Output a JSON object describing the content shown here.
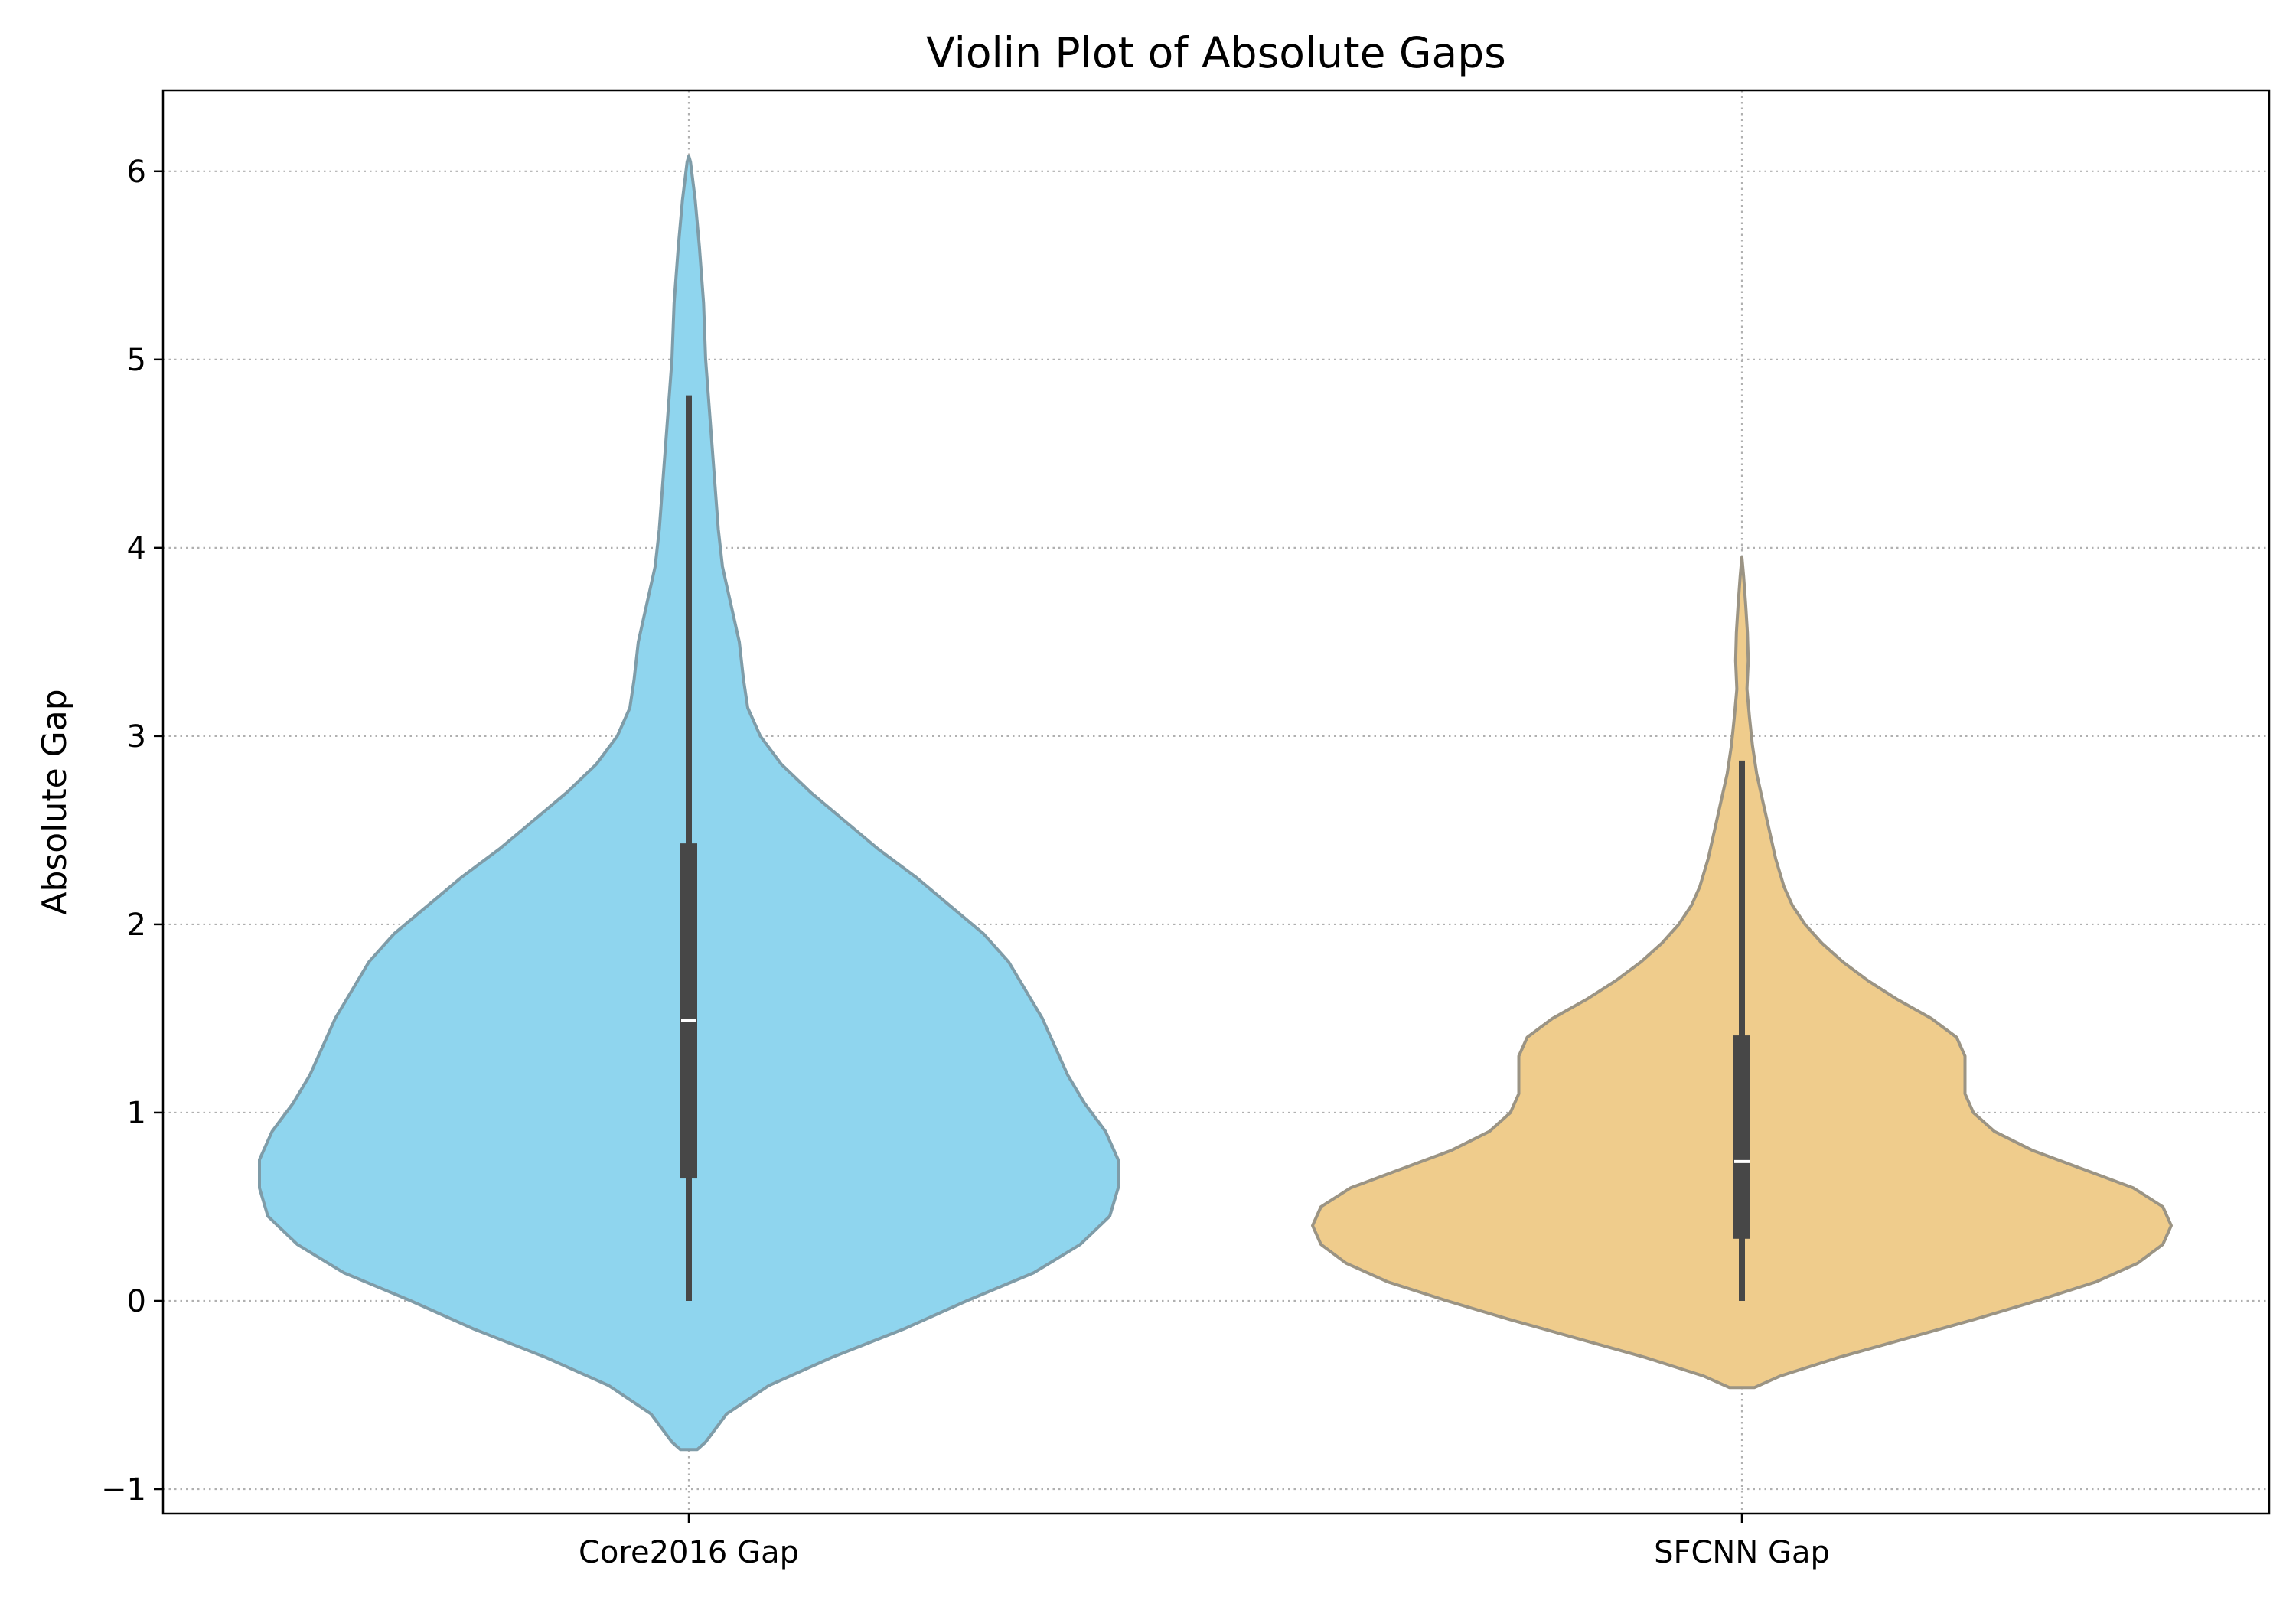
{
  "chart_data": {
    "type": "violin",
    "title": "Violin Plot of Absolute Gaps",
    "xlabel": "",
    "ylabel": "Absolute Gap",
    "ylim": [
      -1.13,
      6.43
    ],
    "yticks": [
      -1,
      0,
      1,
      2,
      3,
      4,
      5,
      6
    ],
    "ytick_labels": [
      "−1",
      "0",
      "1",
      "2",
      "3",
      "4",
      "5",
      "6"
    ],
    "grid": true,
    "categories": [
      "Core2016 Gap",
      "SFCNN Gap"
    ],
    "series": [
      {
        "category": "Core2016 Gap",
        "color": "#8fd5ee",
        "edge_color": "#7f9ca8",
        "whisker_low": 0.0,
        "q1": 0.65,
        "median": 1.49,
        "q3": 2.43,
        "whisker_high": 4.81,
        "density": [
          [
            -0.79,
            0.02
          ],
          [
            -0.75,
            0.04
          ],
          [
            -0.6,
            0.09
          ],
          [
            -0.45,
            0.19
          ],
          [
            -0.3,
            0.34
          ],
          [
            -0.15,
            0.51
          ],
          [
            0.0,
            0.66
          ],
          [
            0.15,
            0.82
          ],
          [
            0.3,
            0.93
          ],
          [
            0.45,
            1.0
          ],
          [
            0.6,
            1.02
          ],
          [
            0.75,
            1.02
          ],
          [
            0.9,
            0.99
          ],
          [
            1.05,
            0.94
          ],
          [
            1.2,
            0.9
          ],
          [
            1.35,
            0.87
          ],
          [
            1.5,
            0.84
          ],
          [
            1.65,
            0.8
          ],
          [
            1.8,
            0.76
          ],
          [
            1.95,
            0.7
          ],
          [
            2.1,
            0.62
          ],
          [
            2.25,
            0.54
          ],
          [
            2.4,
            0.45
          ],
          [
            2.55,
            0.37
          ],
          [
            2.7,
            0.29
          ],
          [
            2.85,
            0.22
          ],
          [
            3.0,
            0.17
          ],
          [
            3.15,
            0.14
          ],
          [
            3.3,
            0.13
          ],
          [
            3.5,
            0.12
          ],
          [
            3.7,
            0.1
          ],
          [
            3.9,
            0.08
          ],
          [
            4.1,
            0.07
          ],
          [
            4.4,
            0.06
          ],
          [
            4.7,
            0.05
          ],
          [
            5.0,
            0.04
          ],
          [
            5.3,
            0.035
          ],
          [
            5.6,
            0.025
          ],
          [
            5.85,
            0.015
          ],
          [
            6.05,
            0.004
          ],
          [
            6.08,
            0.0
          ]
        ]
      },
      {
        "category": "SFCNN Gap",
        "color": "#efcc8c",
        "edge_color": "#9b9484",
        "whisker_low": 0.0,
        "q1": 0.33,
        "median": 0.74,
        "q3": 1.41,
        "whisker_high": 2.87,
        "density": [
          [
            -0.46,
            0.03
          ],
          [
            -0.4,
            0.09
          ],
          [
            -0.3,
            0.23
          ],
          [
            -0.2,
            0.39
          ],
          [
            -0.1,
            0.55
          ],
          [
            0.0,
            0.7
          ],
          [
            0.1,
            0.84
          ],
          [
            0.2,
            0.94
          ],
          [
            0.3,
            1.0
          ],
          [
            0.4,
            1.02
          ],
          [
            0.5,
            1.0
          ],
          [
            0.6,
            0.93
          ],
          [
            0.7,
            0.81
          ],
          [
            0.8,
            0.69
          ],
          [
            0.9,
            0.6
          ],
          [
            1.0,
            0.55
          ],
          [
            1.1,
            0.53
          ],
          [
            1.2,
            0.53
          ],
          [
            1.3,
            0.53
          ],
          [
            1.4,
            0.51
          ],
          [
            1.5,
            0.45
          ],
          [
            1.6,
            0.37
          ],
          [
            1.7,
            0.3
          ],
          [
            1.8,
            0.24
          ],
          [
            1.9,
            0.19
          ],
          [
            2.0,
            0.15
          ],
          [
            2.1,
            0.12
          ],
          [
            2.2,
            0.1
          ],
          [
            2.35,
            0.08
          ],
          [
            2.5,
            0.065
          ],
          [
            2.65,
            0.05
          ],
          [
            2.8,
            0.035
          ],
          [
            2.95,
            0.025
          ],
          [
            3.1,
            0.018
          ],
          [
            3.25,
            0.012
          ],
          [
            3.4,
            0.015
          ],
          [
            3.55,
            0.013
          ],
          [
            3.7,
            0.009
          ],
          [
            3.85,
            0.004
          ],
          [
            3.95,
            0.0
          ]
        ]
      }
    ]
  }
}
